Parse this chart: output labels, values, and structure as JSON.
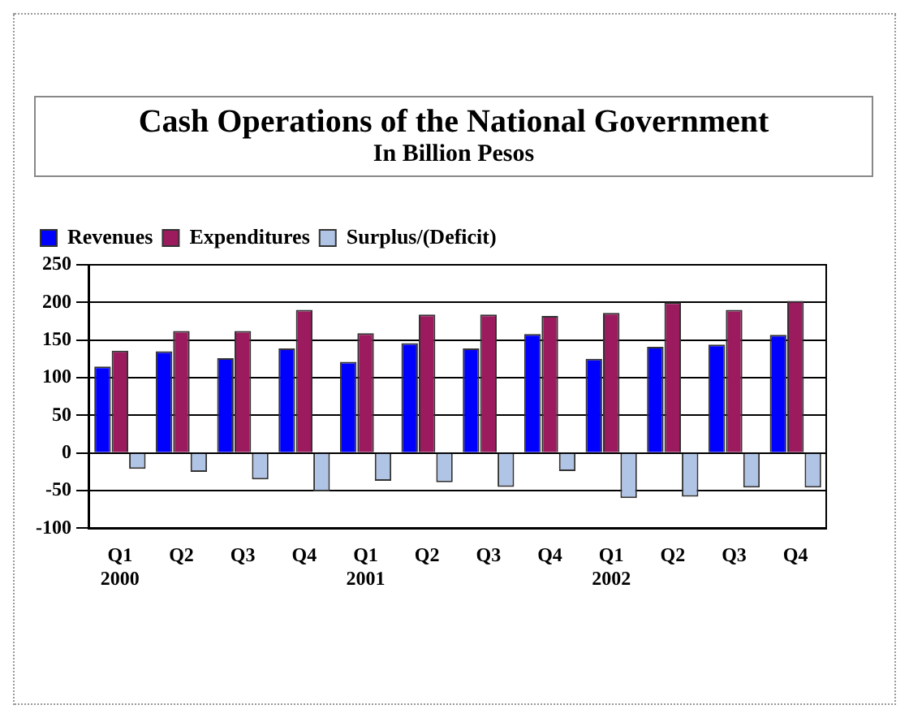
{
  "chart_data": {
    "type": "bar",
    "title": "Cash Operations of the National Government",
    "subtitle": "In Billion Pesos",
    "categories": [
      "Q1\n2000",
      "Q2",
      "Q3",
      "Q4",
      "Q1\n2001",
      "Q2",
      "Q3",
      "Q4",
      "Q1\n2002",
      "Q2",
      "Q3",
      "Q4"
    ],
    "series": [
      {
        "name": "Revenues",
        "color": "#0000ff",
        "values": [
          115,
          135,
          126,
          139,
          121,
          146,
          139,
          158,
          125,
          141,
          144,
          157
        ]
      },
      {
        "name": "Expenditures",
        "color": "#9b1b5e",
        "values": [
          136,
          162,
          162,
          190,
          159,
          184,
          184,
          182,
          186,
          200,
          190,
          202
        ]
      },
      {
        "name": "Surplus/(Deficit)",
        "color": "#b0c4e6",
        "values": [
          -21,
          -25,
          -35,
          -51,
          -37,
          -39,
          -45,
          -24,
          -60,
          -58,
          -46,
          -46
        ]
      }
    ],
    "ylim": [
      -100,
      250
    ],
    "yticks": [
      -100,
      -50,
      0,
      50,
      100,
      150,
      200,
      250
    ],
    "grid": "y",
    "legend": "top"
  }
}
